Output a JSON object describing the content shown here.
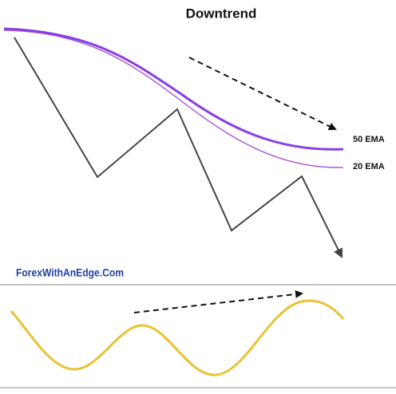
{
  "header": {
    "title": "Downtrend"
  },
  "labels": {
    "ema50": "50 EMA",
    "ema20": "20 EMA"
  },
  "watermark": "ForexWithAnEdge.Com"
}
